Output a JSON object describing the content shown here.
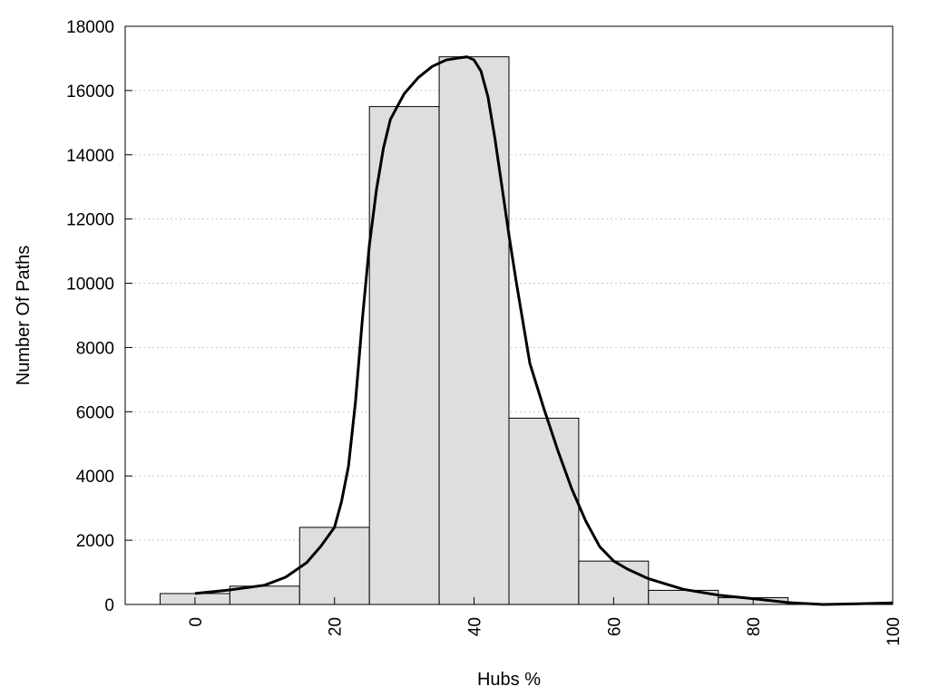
{
  "chart_data": {
    "type": "bar",
    "xlabel": "Hubs %",
    "ylabel": "Number Of Paths",
    "xlim": [
      -10,
      100
    ],
    "ylim": [
      0,
      18000
    ],
    "x_ticks": [
      0,
      20,
      40,
      60,
      80,
      100
    ],
    "y_ticks": [
      0,
      2000,
      4000,
      6000,
      8000,
      10000,
      12000,
      14000,
      16000,
      18000
    ],
    "grid": "horizontal dotted",
    "bin_width": 10,
    "bins": [
      {
        "center": 0,
        "value": 340
      },
      {
        "center": 10,
        "value": 570
      },
      {
        "center": 20,
        "value": 2400
      },
      {
        "center": 30,
        "value": 15500
      },
      {
        "center": 40,
        "value": 17050
      },
      {
        "center": 50,
        "value": 5800
      },
      {
        "center": 60,
        "value": 1350
      },
      {
        "center": 70,
        "value": 440
      },
      {
        "center": 80,
        "value": 210
      },
      {
        "center": 90,
        "value": 20
      },
      {
        "center": 100,
        "value": 20
      }
    ],
    "curve": {
      "x": [
        0,
        5,
        10,
        13,
        16,
        18,
        20,
        21,
        22,
        23,
        24,
        25,
        26,
        27,
        28,
        29,
        30,
        32,
        34,
        36,
        38,
        39,
        40,
        41,
        42,
        43,
        44,
        45,
        46,
        47,
        48,
        50,
        52,
        54,
        56,
        58,
        60,
        62,
        65,
        70,
        75,
        80,
        85,
        90,
        95,
        100
      ],
      "y": [
        340,
        450,
        600,
        850,
        1300,
        1800,
        2400,
        3200,
        4300,
        6300,
        8900,
        11200,
        12900,
        14200,
        15100,
        15500,
        15900,
        16400,
        16750,
        16950,
        17020,
        17050,
        16950,
        16600,
        15800,
        14500,
        13000,
        11500,
        10100,
        8800,
        7500,
        6100,
        4800,
        3600,
        2600,
        1800,
        1350,
        1100,
        800,
        470,
        290,
        180,
        60,
        0,
        20,
        50
      ]
    }
  }
}
